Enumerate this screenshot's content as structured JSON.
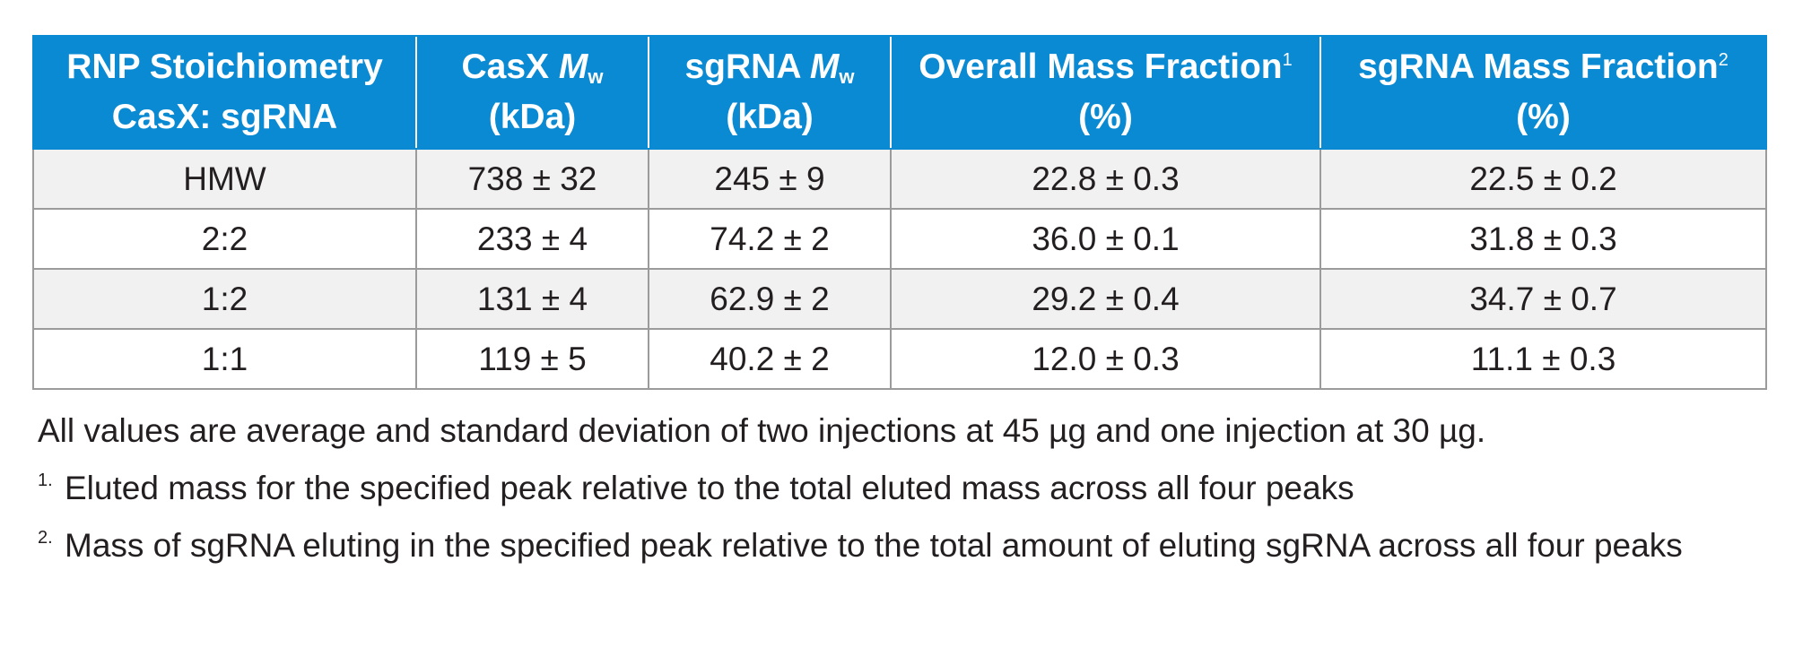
{
  "table": {
    "headers": [
      {
        "line1": "RNP Stoichiometry",
        "line2": "CasX: sgRNA"
      },
      {
        "line1_pre": "CasX ",
        "line1_italic": "M",
        "line1_sub": "w",
        "line2": "(kDa)"
      },
      {
        "line1_pre": "sgRNA ",
        "line1_italic": "M",
        "line1_sub": "w",
        "line2": "(kDa)"
      },
      {
        "line1": "Overall Mass Fraction",
        "sup": "1",
        "line2": "(%)"
      },
      {
        "line1": "sgRNA Mass Fraction",
        "sup": "2",
        "line2": "(%)"
      }
    ],
    "rows": [
      [
        "HMW",
        "738 ± 32",
        "245 ± 9",
        "22.8 ± 0.3",
        "22.5 ± 0.2"
      ],
      [
        "2:2",
        "233 ± 4",
        "74.2 ± 2",
        "36.0 ± 0.1",
        "31.8 ± 0.3"
      ],
      [
        "1:2",
        "131 ± 4",
        "62.9 ± 2",
        "29.2 ± 0.4",
        "34.7 ± 0.7"
      ],
      [
        "1:1",
        "119 ± 5",
        "40.2 ± 2",
        "12.0 ± 0.3",
        "11.1 ± 0.3"
      ]
    ]
  },
  "notes": {
    "summary": "All values are average and standard deviation of two injections at 45 µg and one injection at 30 µg.",
    "footnotes": [
      {
        "marker": "1.",
        "text": "Eluted mass for the specified peak relative to the total eluted mass across all four peaks"
      },
      {
        "marker": "2.",
        "text": "Mass of sgRNA eluting in the specified peak relative to the total amount of eluting sgRNA across all four peaks"
      }
    ]
  },
  "colors": {
    "header_bg": "#0a8ad2",
    "header_text": "#ffffff",
    "row_shade": "#f1f1f2",
    "grid": "#9b9b9b"
  }
}
